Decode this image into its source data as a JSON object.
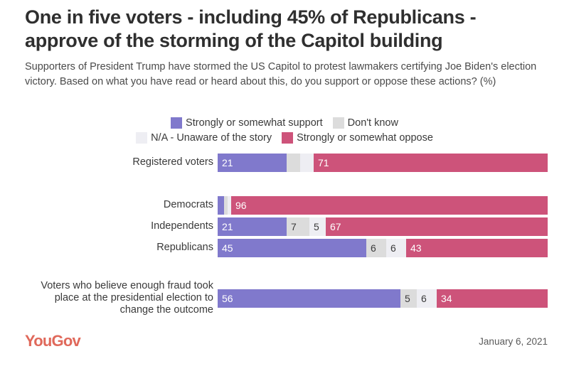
{
  "title": "One in five voters - including 45% of Republicans - approve of the storming of the Capitol building",
  "subtitle": "Supporters of President Trump have stormed the US Capitol to protest lawmakers certifying Joe Biden's election victory. Based on what you have read or heard about this, do you support or oppose these actions? (%)",
  "footer": {
    "logo": "YouGov",
    "date": "January 6, 2021"
  },
  "chart_data": {
    "type": "bar",
    "orientation": "horizontal",
    "stacked": true,
    "title": "One in five voters - including 45% of Republicans - approve of the storming of the Capitol building",
    "xlabel": "",
    "ylabel": "",
    "xlim": [
      0,
      100
    ],
    "legend_position": "top-center",
    "categories": [
      "Registered voters",
      "Democrats",
      "Independents",
      "Republicans",
      "Voters who believe enough fraud took place at the presidential election to change the outcome"
    ],
    "series": [
      {
        "name": "Strongly or somewhat support",
        "color": "#8079cc",
        "label_color": "#ffffff",
        "values": [
          21,
          2,
          21,
          45,
          56
        ],
        "show_labels": [
          true,
          false,
          true,
          true,
          true
        ]
      },
      {
        "name": "Don't know",
        "color": "#dcdcdc",
        "label_color": "#3a3a3a",
        "values": [
          4,
          1,
          7,
          6,
          5
        ],
        "show_labels": [
          false,
          false,
          true,
          true,
          true
        ]
      },
      {
        "name": "N/A - Unaware of the story",
        "color": "#eeeef3",
        "label_color": "#3a3a3a",
        "values": [
          4,
          1,
          5,
          6,
          6
        ],
        "show_labels": [
          false,
          false,
          true,
          true,
          true
        ]
      },
      {
        "name": "Strongly or somewhat oppose",
        "color": "#cd537a",
        "label_color": "#ffffff",
        "values": [
          71,
          96,
          67,
          43,
          34
        ],
        "show_labels": [
          true,
          true,
          true,
          true,
          true
        ]
      }
    ],
    "legend_rows": [
      [
        0,
        1
      ],
      [
        2,
        3
      ]
    ]
  }
}
